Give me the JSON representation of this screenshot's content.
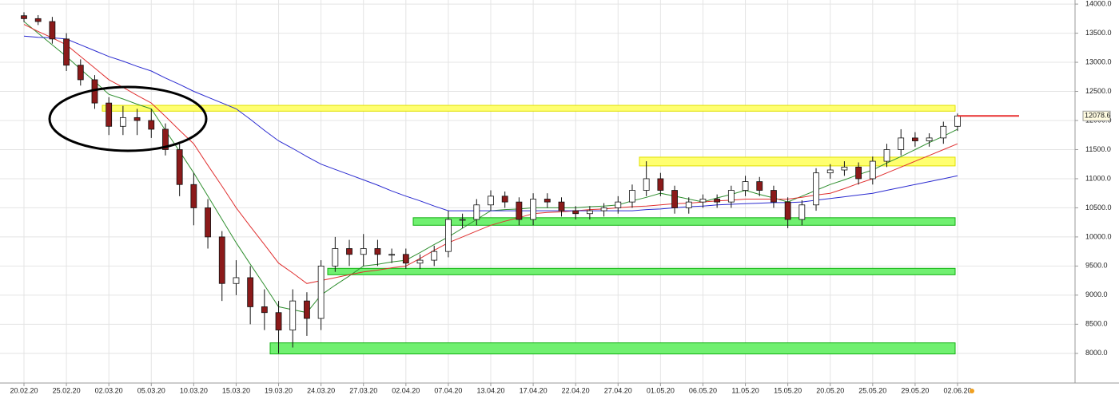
{
  "chart_data": {
    "type": "candlestick",
    "categories": [
      "20.02.20",
      null,
      null,
      "25.02.20",
      null,
      null,
      "02.03.20",
      null,
      null,
      "05.03.20",
      null,
      null,
      "10.03.20",
      null,
      null,
      "15.03.20",
      null,
      null,
      "19.03.20",
      null,
      null,
      "24.03.20",
      null,
      null,
      "27.03.20",
      null,
      null,
      "02.04.20",
      null,
      null,
      "07.04.20",
      null,
      null,
      "13.04.20",
      null,
      null,
      "17.04.20",
      null,
      null,
      "22.04.20",
      null,
      null,
      "27.04.20",
      null,
      null,
      "01.05.20",
      null,
      null,
      "06.05.20",
      null,
      null,
      "11.05.20",
      null,
      null,
      "15.05.20",
      null,
      null,
      "20.05.20",
      null,
      null,
      "25.05.20",
      null,
      null,
      "29.05.20",
      null,
      null,
      "02.06.20"
    ],
    "open": [
      13800,
      13750,
      13700,
      13400,
      12950,
      12700,
      12300,
      11900,
      12050,
      12000,
      11850,
      11500,
      10900,
      10500,
      10000,
      9200,
      9300,
      8800,
      8700,
      8400,
      8900,
      8600,
      9500,
      9800,
      9700,
      9800,
      9700,
      9700,
      9550,
      9600,
      9750,
      10300,
      10300,
      10550,
      10700,
      10600,
      10300,
      10650,
      10600,
      10450,
      10400,
      10450,
      10500,
      10600,
      10800,
      11000,
      10800,
      10500,
      10600,
      10650,
      10600,
      10800,
      10950,
      10800,
      10600,
      10300,
      10550,
      11100,
      11150,
      11200,
      11000,
      11300,
      11500,
      11700,
      11650,
      11700,
      11900
    ],
    "high": [
      13860,
      13810,
      13780,
      13500,
      13050,
      12780,
      12400,
      12250,
      12200,
      12200,
      11950,
      11600,
      11100,
      10650,
      10100,
      9600,
      9500,
      9100,
      8900,
      9100,
      9050,
      9600,
      10000,
      9950,
      10050,
      9950,
      9800,
      9800,
      9700,
      9850,
      10450,
      10400,
      10650,
      10800,
      10780,
      10680,
      10750,
      10750,
      10680,
      10530,
      10530,
      10580,
      10700,
      10900,
      11300,
      11100,
      10880,
      10680,
      10730,
      10730,
      10880,
      11050,
      11030,
      10880,
      10680,
      10630,
      11180,
      11250,
      11300,
      11280,
      11380,
      11600,
      11850,
      11800,
      11780,
      11980,
      12120
    ],
    "low": [
      13690,
      13640,
      13320,
      12850,
      12600,
      12200,
      11750,
      11750,
      11750,
      11700,
      11400,
      10700,
      10200,
      9800,
      8900,
      9000,
      8500,
      8400,
      8000,
      8100,
      8300,
      8400,
      9400,
      9500,
      9500,
      9500,
      9550,
      9450,
      9450,
      9500,
      9650,
      10150,
      10200,
      10450,
      10500,
      10200,
      10200,
      10500,
      10350,
      10300,
      10300,
      10350,
      10400,
      10500,
      10700,
      10700,
      10400,
      10400,
      10500,
      10500,
      10500,
      10700,
      10700,
      10500,
      10150,
      10200,
      10450,
      11000,
      11050,
      10900,
      10900,
      11200,
      11400,
      11550,
      11550,
      11600,
      11820
    ],
    "close": [
      13750,
      13700,
      13400,
      12950,
      12700,
      12300,
      11900,
      12050,
      12000,
      11850,
      11500,
      10900,
      10500,
      10000,
      9200,
      9300,
      8800,
      8700,
      8400,
      8900,
      8600,
      9500,
      9800,
      9700,
      9800,
      9700,
      9700,
      9550,
      9600,
      9750,
      10300,
      10300,
      10550,
      10700,
      10600,
      10300,
      10650,
      10600,
      10450,
      10400,
      10450,
      10500,
      10600,
      10800,
      11000,
      10800,
      10500,
      10600,
      10650,
      10600,
      10800,
      10950,
      10800,
      10600,
      10300,
      10550,
      11100,
      11150,
      11200,
      11000,
      11300,
      11500,
      11700,
      11650,
      11700,
      11900,
      12078.6
    ],
    "up_color": "#ffffff",
    "down_color": "#8b1a1a",
    "last_price_color": "#e83030",
    "series": [
      {
        "color": "#2f8f2f",
        "values": [
          13700,
          13500,
          13300,
          13100,
          12880,
          12670,
          12450,
          12370,
          12280,
          12200,
          11830,
          11470,
          11100,
          10700,
          10300,
          9900,
          9530,
          9170,
          8800,
          8750,
          8700,
          9000,
          9170,
          9330,
          9500,
          9530,
          9570,
          9600,
          9730,
          9870,
          10000,
          10150,
          10300,
          10450,
          10470,
          10480,
          10500,
          10500,
          10500,
          10500,
          10520,
          10530,
          10550,
          10620,
          10680,
          10750,
          10700,
          10650,
          10600,
          10670,
          10730,
          10800,
          10730,
          10670,
          10600,
          10700,
          10800,
          10900,
          10980,
          11070,
          11150,
          11270,
          11380,
          11500,
          11620,
          11730,
          11850
        ]
      },
      {
        "color": "#e03030",
        "values": [
          13650,
          13530,
          13420,
          13300,
          13100,
          12900,
          12700,
          12570,
          12430,
          12300,
          12070,
          11830,
          11600,
          11230,
          10870,
          10500,
          10180,
          9870,
          9550,
          9380,
          9200,
          9250,
          9300,
          9350,
          9400,
          9430,
          9470,
          9500,
          9630,
          9770,
          9900,
          10000,
          10100,
          10200,
          10270,
          10330,
          10400,
          10420,
          10430,
          10450,
          10470,
          10480,
          10500,
          10520,
          10530,
          10550,
          10570,
          10580,
          10600,
          10620,
          10630,
          10650,
          10650,
          10650,
          10650,
          10680,
          10720,
          10750,
          10830,
          10920,
          11000,
          11100,
          11200,
          11300,
          11400,
          11500,
          11600
        ]
      },
      {
        "color": "#2a2ad0",
        "values": [
          13450,
          13430,
          13420,
          13400,
          13300,
          13200,
          13100,
          13020,
          12930,
          12850,
          12730,
          12620,
          12500,
          12400,
          12300,
          12200,
          12020,
          11830,
          11650,
          11520,
          11380,
          11250,
          11160,
          11070,
          10980,
          10890,
          10790,
          10700,
          10620,
          10530,
          10450,
          10450,
          10450,
          10450,
          10450,
          10450,
          10450,
          10450,
          10450,
          10450,
          10450,
          10450,
          10450,
          10450,
          10470,
          10480,
          10500,
          10520,
          10530,
          10550,
          10560,
          10570,
          10580,
          10590,
          10590,
          10600,
          10630,
          10660,
          10690,
          10720,
          10750,
          10800,
          10850,
          10900,
          10950,
          11000,
          11050
        ]
      }
    ],
    "zones": [
      {
        "color": "#ffff70",
        "border": "#e0e000",
        "low": 12160,
        "high": 12260
      },
      {
        "color": "#ffff70",
        "border": "#e0e000",
        "low": 11220,
        "high": 11370
      },
      {
        "color": "#70f070",
        "border": "#10b010",
        "low": 10200,
        "high": 10330
      },
      {
        "color": "#70f070",
        "border": "#10b010",
        "low": 9350,
        "high": 9460
      },
      {
        "color": "#70f070",
        "border": "#10b010",
        "low": 7990,
        "high": 8180
      }
    ],
    "ylim": [
      7490,
      14070
    ],
    "yticks": [
      {
        "value": 8000,
        "label": "8000.0"
      },
      {
        "value": 8500,
        "label": "8500.0"
      },
      {
        "value": 9000,
        "label": "9000.0"
      },
      {
        "value": 9500,
        "label": "9500.0"
      },
      {
        "value": 10000,
        "label": "10000.0"
      },
      {
        "value": 10500,
        "label": "10500.0"
      },
      {
        "value": 11000,
        "label": "11000.0"
      },
      {
        "value": 11500,
        "label": "11500.0"
      },
      {
        "value": 12000,
        "label": "12000.0"
      },
      {
        "value": 12500,
        "label": "12500.0"
      },
      {
        "value": 13000,
        "label": "13000.0"
      },
      {
        "value": 13500,
        "label": "13500.0"
      },
      {
        "value": 14000,
        "label": "14000.0"
      }
    ],
    "grid": true
  }
}
